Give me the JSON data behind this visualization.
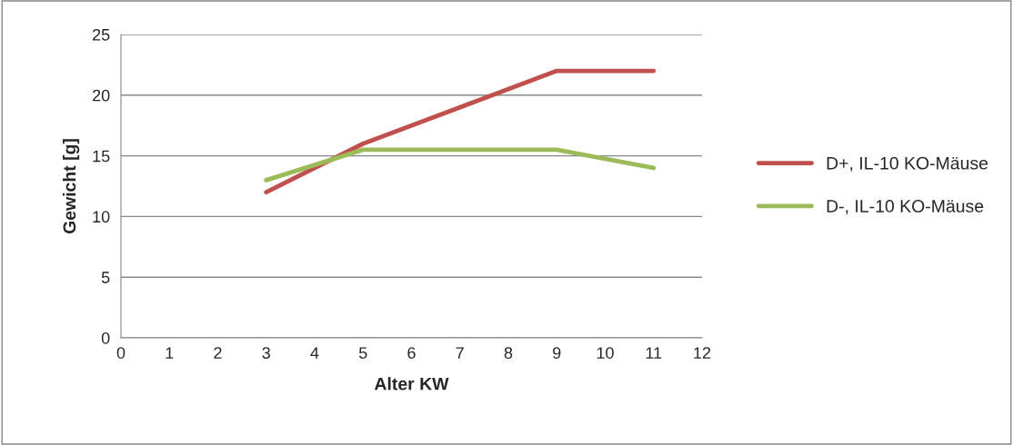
{
  "chart_data": {
    "type": "line",
    "xlabel": "Alter KW",
    "ylabel": "Gewicht [g]",
    "x": [
      3,
      5,
      9,
      11
    ],
    "series": [
      {
        "name": "D+, IL-10 KO-Mäuse",
        "color": "#c0504d",
        "values": [
          12,
          16,
          22,
          22
        ]
      },
      {
        "name": "D-, IL-10 KO-Mäuse",
        "color": "#9bbb59",
        "values": [
          13,
          15.5,
          15.5,
          14
        ]
      }
    ],
    "xlim": [
      0,
      12
    ],
    "xticks": [
      0,
      1,
      2,
      3,
      4,
      5,
      6,
      7,
      8,
      9,
      10,
      11,
      12
    ],
    "ylim": [
      0,
      25
    ],
    "yticks": [
      0,
      5,
      10,
      15,
      20,
      25
    ],
    "grid": "y",
    "legend": "right",
    "marker": "none",
    "line_style": "solid"
  }
}
